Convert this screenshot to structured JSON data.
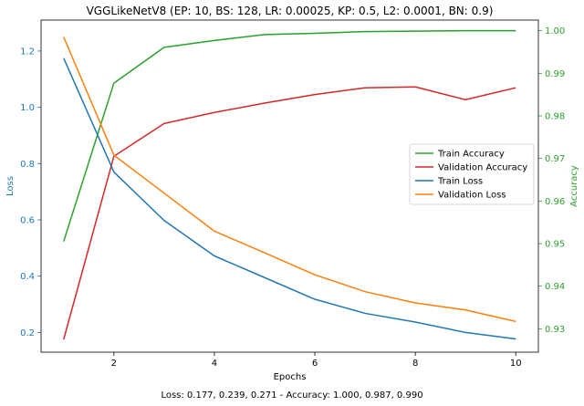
{
  "chart_data": {
    "type": "line",
    "title": "VGGLikeNetV8 (EP: 10, BS: 128, LR: 0.00025, KP: 0.5, L2: 0.0001, BN: 0.9)",
    "xlabel": "Epochs",
    "ylabel_left": "Loss",
    "ylabel_right": "Accuracy",
    "footer": "Loss: 0.177, 0.239, 0.271 - Accuracy: 1.000, 0.987, 0.990",
    "x": [
      1,
      2,
      3,
      4,
      5,
      6,
      7,
      8,
      9,
      10
    ],
    "xlim": [
      0.55,
      10.45
    ],
    "ylim_left": [
      0.13,
      1.31
    ],
    "ylim_right": [
      0.9245,
      1.0025
    ],
    "xticks": [
      2,
      4,
      6,
      8,
      10
    ],
    "yticks_left": [
      0.2,
      0.4,
      0.6,
      0.8,
      1.0,
      1.2
    ],
    "yticks_right": [
      0.93,
      0.94,
      0.95,
      0.96,
      0.97,
      0.98,
      0.99,
      1.0
    ],
    "left_axis_color": "#1f77b4",
    "right_axis_color": "#2ca02c",
    "grid": false,
    "legend_position": "center-right",
    "series": [
      {
        "name": "Train Accuracy",
        "axis": "right",
        "color": "#2ca02c",
        "values": [
          0.9505,
          0.9877,
          0.9961,
          0.9977,
          0.9991,
          0.9994,
          0.9998,
          0.9999,
          1.0,
          1.0
        ]
      },
      {
        "name": "Validation Accuracy",
        "axis": "right",
        "color": "#d62728",
        "values": [
          0.9275,
          0.9705,
          0.9782,
          0.9808,
          0.983,
          0.985,
          0.9866,
          0.9868,
          0.9838,
          0.9866
        ]
      },
      {
        "name": "Train Loss",
        "axis": "left",
        "color": "#1f77b4",
        "values": [
          1.175,
          0.77,
          0.598,
          0.472,
          0.395,
          0.318,
          0.268,
          0.237,
          0.2,
          0.177
        ]
      },
      {
        "name": "Validation Loss",
        "axis": "left",
        "color": "#ff7f0e",
        "values": [
          1.25,
          0.83,
          0.695,
          0.56,
          0.483,
          0.405,
          0.345,
          0.305,
          0.28,
          0.239
        ]
      }
    ]
  }
}
